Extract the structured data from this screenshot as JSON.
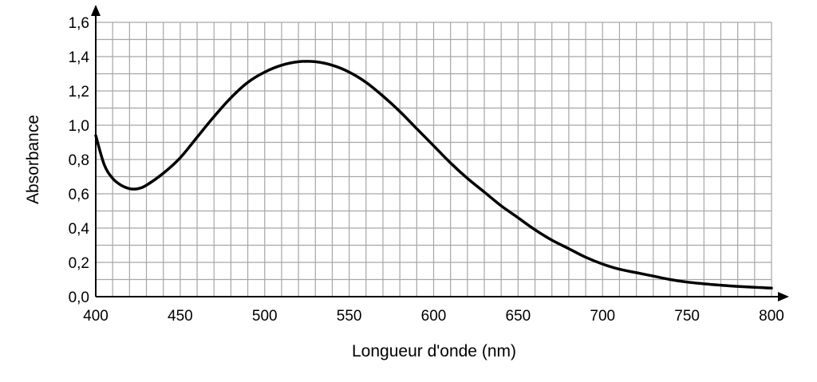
{
  "chart_data": {
    "type": "line",
    "xlabel": "Longueur d'onde (nm)",
    "ylabel": "Absorbance",
    "xlim": [
      400,
      800
    ],
    "ylim": [
      0,
      1.6
    ],
    "x_ticks": [
      "400",
      "450",
      "500",
      "550",
      "600",
      "650",
      "700",
      "750",
      "800"
    ],
    "y_ticks": [
      "0,0",
      "0,2",
      "0,4",
      "0,6",
      "0,8",
      "1,0",
      "1,2",
      "1,4",
      "1,6"
    ],
    "grid": true,
    "x_grid_step": 10,
    "y_grid_step": 0.1,
    "series": [
      {
        "x": [
          400,
          405,
          410,
          415,
          420,
          425,
          430,
          440,
          450,
          460,
          470,
          480,
          490,
          500,
          510,
          520,
          530,
          540,
          550,
          560,
          570,
          580,
          590,
          600,
          610,
          620,
          630,
          640,
          650,
          660,
          670,
          680,
          690,
          700,
          710,
          720,
          730,
          740,
          750,
          760,
          770,
          780,
          790,
          800
        ],
        "y": [
          0.94,
          0.77,
          0.69,
          0.65,
          0.63,
          0.63,
          0.65,
          0.72,
          0.81,
          0.93,
          1.05,
          1.16,
          1.25,
          1.31,
          1.35,
          1.37,
          1.37,
          1.35,
          1.31,
          1.25,
          1.17,
          1.08,
          0.98,
          0.88,
          0.78,
          0.69,
          0.61,
          0.53,
          0.46,
          0.39,
          0.33,
          0.28,
          0.23,
          0.19,
          0.16,
          0.14,
          0.12,
          0.1,
          0.085,
          0.075,
          0.067,
          0.06,
          0.055,
          0.05
        ],
        "color": "#000000"
      }
    ]
  }
}
